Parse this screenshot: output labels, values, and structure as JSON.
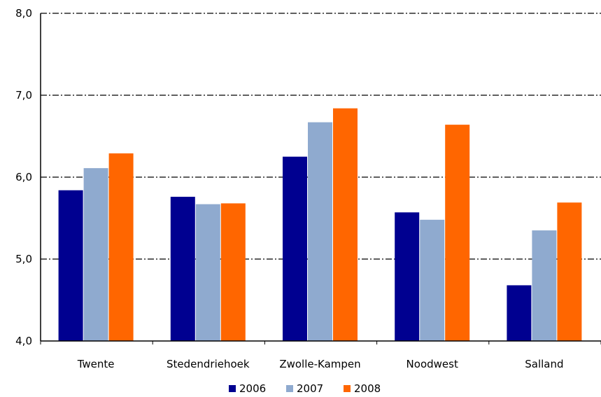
{
  "chart_data": {
    "type": "bar",
    "categories": [
      "Twente",
      "Stedendriehoek",
      "Zwolle-Kampen",
      "Noodwest",
      "Salland"
    ],
    "series": [
      {
        "name": "2006",
        "values": [
          5.84,
          5.76,
          6.25,
          5.57,
          4.68
        ],
        "color": "#000090"
      },
      {
        "name": "2007",
        "values": [
          6.11,
          5.67,
          6.67,
          5.48,
          5.35
        ],
        "color": "#8faacf"
      },
      {
        "name": "2008",
        "values": [
          6.29,
          5.68,
          6.84,
          6.64,
          5.69
        ],
        "color": "#ff6600"
      }
    ],
    "ylim": [
      4.0,
      8.0
    ],
    "yticks": [
      4.0,
      5.0,
      6.0,
      7.0,
      8.0
    ],
    "ytick_labels": [
      "4,0",
      "5,0",
      "6,0",
      "7,0",
      "8,0"
    ],
    "grid": true,
    "legend_position": "bottom"
  }
}
